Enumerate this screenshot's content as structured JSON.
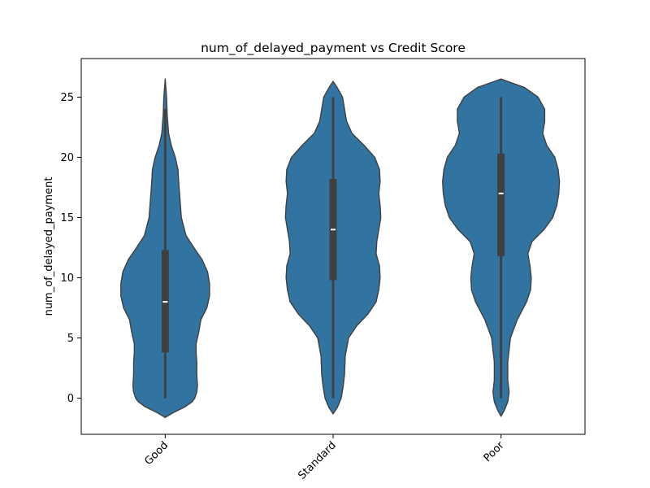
{
  "chart_data": {
    "type": "violin",
    "title": "num_of_delayed_payment vs Credit Score",
    "xlabel": "",
    "ylabel": "num_of_delayed_payment",
    "categories": [
      "Good",
      "Standard",
      "Poor"
    ],
    "ylim": [
      -3,
      28.2
    ],
    "yticks": [
      0,
      5,
      10,
      15,
      20,
      25
    ],
    "grid": false,
    "colors": {
      "violin": "#3274a1",
      "edge": "#3f3f3f",
      "box": "#3f3f3f",
      "median": "#ffffff"
    },
    "series": [
      {
        "category": "Good",
        "quartiles": {
          "q1": 3.8,
          "median": 8,
          "q3": 12.3
        },
        "whiskers": [
          0,
          24
        ],
        "density": [
          [
            -1.6,
            0.0
          ],
          [
            -1.2,
            0.12
          ],
          [
            -0.7,
            0.3
          ],
          [
            -0.3,
            0.4
          ],
          [
            0.0,
            0.44
          ],
          [
            0.5,
            0.47
          ],
          [
            1.0,
            0.48
          ],
          [
            2.0,
            0.47
          ],
          [
            3.0,
            0.47
          ],
          [
            3.8,
            0.46
          ],
          [
            4.5,
            0.46
          ],
          [
            5.5,
            0.5
          ],
          [
            6.5,
            0.53
          ],
          [
            7.5,
            0.62
          ],
          [
            8.5,
            0.66
          ],
          [
            9.5,
            0.66
          ],
          [
            10.5,
            0.63
          ],
          [
            11.5,
            0.55
          ],
          [
            12.3,
            0.45
          ],
          [
            13.5,
            0.31
          ],
          [
            15.0,
            0.24
          ],
          [
            16.5,
            0.22
          ],
          [
            18.0,
            0.2
          ],
          [
            19.0,
            0.19
          ],
          [
            20.0,
            0.15
          ],
          [
            21.0,
            0.09
          ],
          [
            22.0,
            0.05
          ],
          [
            23.5,
            0.03
          ],
          [
            25.0,
            0.02
          ],
          [
            26.5,
            0.0
          ]
        ]
      },
      {
        "category": "Standard",
        "quartiles": {
          "q1": 9.8,
          "median": 14,
          "q3": 18.2
        },
        "whiskers": [
          0,
          25
        ],
        "density": [
          [
            -1.3,
            0.0
          ],
          [
            -0.8,
            0.06
          ],
          [
            0.0,
            0.12
          ],
          [
            1.0,
            0.15
          ],
          [
            2.0,
            0.17
          ],
          [
            3.5,
            0.18
          ],
          [
            5.0,
            0.23
          ],
          [
            6.0,
            0.35
          ],
          [
            7.0,
            0.52
          ],
          [
            8.0,
            0.64
          ],
          [
            9.0,
            0.68
          ],
          [
            10.0,
            0.7
          ],
          [
            11.0,
            0.69
          ],
          [
            12.0,
            0.64
          ],
          [
            13.0,
            0.65
          ],
          [
            14.0,
            0.68
          ],
          [
            15.0,
            0.71
          ],
          [
            16.0,
            0.7
          ],
          [
            17.0,
            0.68
          ],
          [
            18.0,
            0.7
          ],
          [
            19.0,
            0.69
          ],
          [
            20.0,
            0.62
          ],
          [
            21.0,
            0.46
          ],
          [
            22.0,
            0.28
          ],
          [
            23.0,
            0.2
          ],
          [
            24.0,
            0.17
          ],
          [
            25.0,
            0.14
          ],
          [
            25.8,
            0.06
          ],
          [
            26.3,
            0.0
          ]
        ]
      },
      {
        "category": "Poor",
        "quartiles": {
          "q1": 11.8,
          "median": 17,
          "q3": 20.3
        },
        "whiskers": [
          0,
          25
        ],
        "density": [
          [
            -1.5,
            0.0
          ],
          [
            -1.0,
            0.05
          ],
          [
            -0.3,
            0.1
          ],
          [
            0.5,
            0.12
          ],
          [
            1.5,
            0.1
          ],
          [
            3.0,
            0.1
          ],
          [
            5.0,
            0.14
          ],
          [
            6.5,
            0.24
          ],
          [
            8.0,
            0.38
          ],
          [
            9.0,
            0.44
          ],
          [
            10.0,
            0.45
          ],
          [
            11.0,
            0.43
          ],
          [
            12.0,
            0.4
          ],
          [
            13.0,
            0.46
          ],
          [
            14.0,
            0.64
          ],
          [
            15.0,
            0.77
          ],
          [
            16.0,
            0.83
          ],
          [
            17.0,
            0.86
          ],
          [
            18.0,
            0.87
          ],
          [
            19.0,
            0.85
          ],
          [
            20.0,
            0.8
          ],
          [
            21.0,
            0.68
          ],
          [
            22.0,
            0.62
          ],
          [
            23.0,
            0.65
          ],
          [
            24.0,
            0.65
          ],
          [
            25.0,
            0.55
          ],
          [
            25.8,
            0.35
          ],
          [
            26.3,
            0.1
          ],
          [
            26.5,
            0.0
          ]
        ]
      }
    ]
  }
}
